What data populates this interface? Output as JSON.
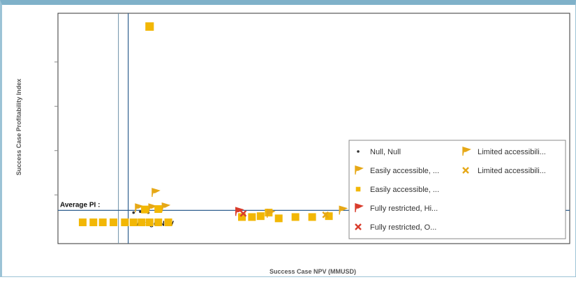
{
  "chart_data": {
    "type": "scatter",
    "title": "",
    "xlabel": "Success Case NPV (MMUSD)",
    "ylabel": "Success Case Profitability Index",
    "xlim": [
      -45,
      720
    ],
    "ylim": [
      -0.6,
      4.6
    ],
    "ytick_values": [
      0.5,
      1.5,
      2.5,
      3.5
    ],
    "reference_lines": {
      "avg_pi": {
        "label": "Average PI :",
        "value": 0.15
      },
      "avg_npv": {
        "label": "Average NPV",
        "value": 60
      }
    },
    "series": [
      {
        "name": "Null, Null",
        "marker": "dot",
        "color": "#333333",
        "points": [
          [
            68,
            0.1
          ],
          [
            78,
            0.12
          ],
          [
            90,
            0.1
          ]
        ]
      },
      {
        "name": "Easily accessible, ...",
        "marker": "flag",
        "color": "#e6a817",
        "points": [
          [
            100,
            0.55
          ],
          [
            115,
            0.22
          ],
          [
            75,
            0.2
          ],
          [
            95,
            0.2
          ],
          [
            400,
            0.18
          ]
        ]
      },
      {
        "name": "Easily accessible, ...",
        "marker": "square",
        "color": "#f2b705",
        "points": [
          [
            92,
            4.3
          ],
          [
            -8,
            -0.12
          ],
          [
            8,
            -0.12
          ],
          [
            22,
            -0.12
          ],
          [
            38,
            -0.12
          ],
          [
            55,
            -0.12
          ],
          [
            68,
            -0.12
          ],
          [
            80,
            -0.12
          ],
          [
            92,
            -0.12
          ],
          [
            105,
            -0.12
          ],
          [
            120,
            -0.12
          ],
          [
            230,
            0.0
          ],
          [
            245,
            0.0
          ],
          [
            258,
            0.02
          ],
          [
            270,
            0.1
          ],
          [
            285,
            -0.03
          ],
          [
            310,
            0.0
          ],
          [
            335,
            0.0
          ],
          [
            360,
            0.02
          ],
          [
            85,
            0.17
          ],
          [
            105,
            0.18
          ]
        ]
      },
      {
        "name": "Fully restricted, Hi...",
        "marker": "flag-red",
        "color": "#d93c2c",
        "points": [
          [
            225,
            0.12
          ]
        ]
      },
      {
        "name": "Fully restricted, O...",
        "marker": "x",
        "color": "#d93c2c",
        "points": [
          [
            232,
            0.08
          ]
        ]
      },
      {
        "name": "Limited accessibili...",
        "marker": "flag",
        "color": "#e6a817",
        "points": [
          [
            380,
            0.15
          ],
          [
            272,
            0.08
          ]
        ]
      },
      {
        "name": "Limited accessibili...",
        "marker": "x",
        "color": "#e6a817",
        "points": [
          [
            395,
            0.05
          ],
          [
            355,
            0.05
          ]
        ]
      }
    ],
    "legend": {
      "position": "right",
      "columns": [
        [
          "Null, Null",
          "Easily accessible, ...",
          "Easily accessible, ...",
          "Fully restricted, Hi...",
          "Fully restricted, O..."
        ],
        [
          "Limited accessibili...",
          "Limited accessibili..."
        ]
      ]
    }
  }
}
